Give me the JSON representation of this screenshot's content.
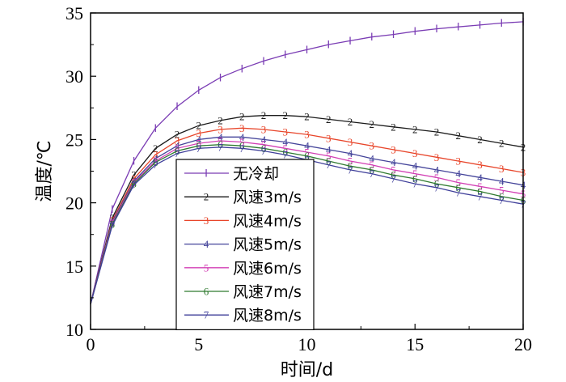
{
  "chart_data": {
    "type": "line",
    "xlabel": "时间/d",
    "ylabel": "温度/℃",
    "xlim": [
      0,
      20
    ],
    "ylim": [
      10,
      35
    ],
    "xticks": [
      0,
      5,
      10,
      15,
      20
    ],
    "yticks": [
      10,
      15,
      20,
      25,
      30,
      35
    ],
    "grid": false,
    "legend_position": "lower-left",
    "x": [
      0,
      1,
      2,
      3,
      4,
      5,
      6,
      7,
      8,
      9,
      10,
      11,
      12,
      13,
      14,
      15,
      16,
      17,
      18,
      19,
      20
    ],
    "series": [
      {
        "name": "无冷却",
        "marker": "Ⅰ",
        "color": "#7a3cb4",
        "values": [
          12.0,
          19.5,
          23.3,
          25.9,
          27.6,
          28.9,
          29.9,
          30.6,
          31.2,
          31.7,
          32.1,
          32.5,
          32.8,
          33.1,
          33.3,
          33.55,
          33.75,
          33.9,
          34.05,
          34.2,
          34.3
        ]
      },
      {
        "name": "风速3m/s",
        "marker": "2",
        "color": "#1a1a1a",
        "values": [
          12.0,
          18.8,
          22.2,
          24.3,
          25.4,
          26.1,
          26.5,
          26.8,
          26.9,
          26.9,
          26.8,
          26.6,
          26.4,
          26.2,
          26.0,
          25.8,
          25.6,
          25.3,
          25.0,
          24.7,
          24.4
        ]
      },
      {
        "name": "风速4m/s",
        "marker": "3",
        "color": "#e8452a",
        "values": [
          12.0,
          18.6,
          21.9,
          23.8,
          24.9,
          25.5,
          25.8,
          25.9,
          25.8,
          25.6,
          25.4,
          25.1,
          24.8,
          24.5,
          24.2,
          23.9,
          23.6,
          23.3,
          23.0,
          22.7,
          22.4
        ]
      },
      {
        "name": "风速5m/s",
        "marker": "4",
        "color": "#44449a",
        "values": [
          12.0,
          18.5,
          21.7,
          23.5,
          24.5,
          25.0,
          25.2,
          25.2,
          25.0,
          24.8,
          24.5,
          24.2,
          23.9,
          23.5,
          23.2,
          22.9,
          22.6,
          22.3,
          22.0,
          21.7,
          21.4
        ]
      },
      {
        "name": "风速6m/s",
        "marker": "5",
        "color": "#d23fb4",
        "values": [
          12.0,
          18.4,
          21.6,
          23.3,
          24.3,
          24.7,
          24.9,
          24.8,
          24.6,
          24.3,
          24.0,
          23.7,
          23.3,
          23.0,
          22.6,
          22.3,
          22.0,
          21.6,
          21.3,
          21.0,
          20.7
        ]
      },
      {
        "name": "风速7m/s",
        "marker": "6",
        "color": "#2f7a2f",
        "values": [
          12.0,
          18.3,
          21.5,
          23.2,
          24.1,
          24.5,
          24.6,
          24.5,
          24.3,
          24.0,
          23.7,
          23.3,
          22.9,
          22.6,
          22.2,
          21.9,
          21.5,
          21.2,
          20.9,
          20.5,
          20.2
        ]
      },
      {
        "name": "风速8m/s",
        "marker": "7",
        "color": "#3f3f9a",
        "values": [
          12.0,
          18.2,
          21.4,
          23.0,
          23.9,
          24.3,
          24.4,
          24.3,
          24.1,
          23.8,
          23.4,
          23.0,
          22.6,
          22.3,
          21.9,
          21.5,
          21.2,
          20.8,
          20.5,
          20.2,
          19.9
        ]
      }
    ]
  }
}
